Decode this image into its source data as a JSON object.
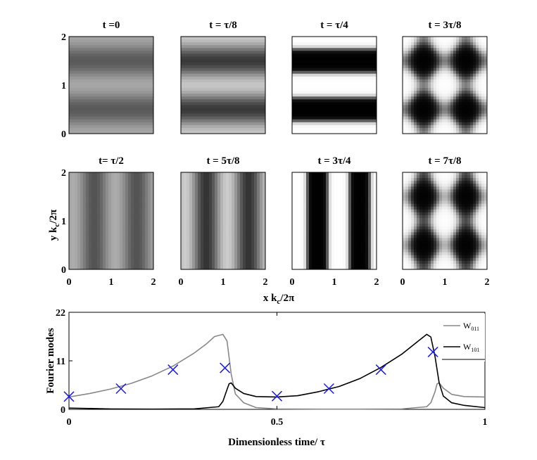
{
  "chart_data": [
    {
      "type": "heatmap",
      "ylabel_main": "y k",
      "ylabel_sub": "c",
      "ylabel_tail": "/2π",
      "xlabel_main": "x k",
      "xlabel_sub": "c",
      "xlabel_tail": "/2π",
      "xlim": [
        0,
        2
      ],
      "ylim": [
        0,
        2
      ],
      "x_ticks": [
        "0",
        "1",
        "2"
      ],
      "y_ticks": [
        "0",
        "1",
        "2"
      ],
      "panels": [
        {
          "title": "t =0",
          "pattern": "horizontal",
          "amp_x": 0,
          "amp_y": 0.3,
          "mode": "soft"
        },
        {
          "title": "t = τ/8",
          "pattern": "horizontal",
          "amp_x": 0,
          "amp_y": 0.55,
          "mode": "soft"
        },
        {
          "title": "t = τ/4",
          "pattern": "horizontal",
          "amp_x": 0,
          "amp_y": 1.0,
          "mode": "sharp"
        },
        {
          "title": "t = 3τ/8",
          "pattern": "square",
          "amp_x": 0.7,
          "amp_y": 0.7,
          "mode": "square"
        },
        {
          "title": "t= τ/2",
          "pattern": "vertical",
          "amp_x": 0.35,
          "amp_y": 0,
          "mode": "soft"
        },
        {
          "title": "t = 5τ/8",
          "pattern": "vertical",
          "amp_x": 0.6,
          "amp_y": 0,
          "mode": "soft"
        },
        {
          "title": "t = 3τ/4",
          "pattern": "vertical",
          "amp_x": 1.0,
          "amp_y": 0,
          "mode": "sharp"
        },
        {
          "title": "t = 7τ/8",
          "pattern": "square",
          "amp_x": 0.8,
          "amp_y": 0.55,
          "mode": "square2"
        }
      ]
    },
    {
      "type": "line",
      "xlabel": "Dimensionless time/ τ",
      "ylabel": "Fourier modes",
      "xlim": [
        0,
        1
      ],
      "ylim": [
        0,
        22
      ],
      "x_ticks": [
        0,
        0.5,
        1
      ],
      "x_tick_labels": [
        "0",
        "0.5",
        "1"
      ],
      "y_ticks": [
        0,
        11,
        22
      ],
      "y_tick_labels": [
        "0",
        "11",
        "22"
      ],
      "legend": [
        {
          "label_main": "W",
          "label_sub": "011",
          "color": "#888888"
        },
        {
          "label_main": "W",
          "label_sub": "101",
          "color": "#000000"
        }
      ],
      "legend_placement": "top-right",
      "series": [
        {
          "name": "W011",
          "color": "#888888",
          "x": [
            0,
            0.05,
            0.1,
            0.15,
            0.2,
            0.25,
            0.3,
            0.33,
            0.35,
            0.37,
            0.38,
            0.39,
            0.4,
            0.42,
            0.45,
            0.5,
            0.6,
            0.7,
            0.8,
            0.86,
            0.87,
            0.88,
            0.885,
            0.89,
            0.9,
            0.92,
            0.95,
            1.0
          ],
          "y": [
            2.8,
            3.6,
            4.6,
            5.9,
            7.6,
            9.8,
            12.7,
            14.8,
            16.5,
            17.0,
            15.5,
            8.0,
            3.5,
            1.5,
            0.4,
            0.1,
            0.05,
            0.05,
            0.1,
            0.6,
            1.5,
            4.0,
            5.8,
            6.0,
            4.8,
            3.4,
            2.9,
            2.8
          ]
        },
        {
          "name": "W101",
          "color": "#000000",
          "x": [
            0,
            0.1,
            0.2,
            0.3,
            0.36,
            0.37,
            0.38,
            0.385,
            0.39,
            0.4,
            0.42,
            0.45,
            0.5,
            0.55,
            0.6,
            0.65,
            0.7,
            0.75,
            0.8,
            0.84,
            0.86,
            0.87,
            0.88,
            0.89,
            0.9,
            0.92,
            0.95,
            1.0
          ],
          "y": [
            0.3,
            0.1,
            0.05,
            0.1,
            0.6,
            1.8,
            4.5,
            5.8,
            6.0,
            4.8,
            3.6,
            2.9,
            2.8,
            3.1,
            4.0,
            5.2,
            7.0,
            9.5,
            12.5,
            15.5,
            17.0,
            16.4,
            12.0,
            6.0,
            3.0,
            1.5,
            0.9,
            0.4
          ]
        }
      ],
      "markers": {
        "name": "snapshots",
        "color": "#1a1aee",
        "x": [
          0,
          0.125,
          0.25,
          0.375,
          0.5,
          0.625,
          0.75,
          0.875
        ],
        "y": [
          2.9,
          4.7,
          9.0,
          9.4,
          3.0,
          4.7,
          9.0,
          13.0
        ]
      }
    }
  ]
}
